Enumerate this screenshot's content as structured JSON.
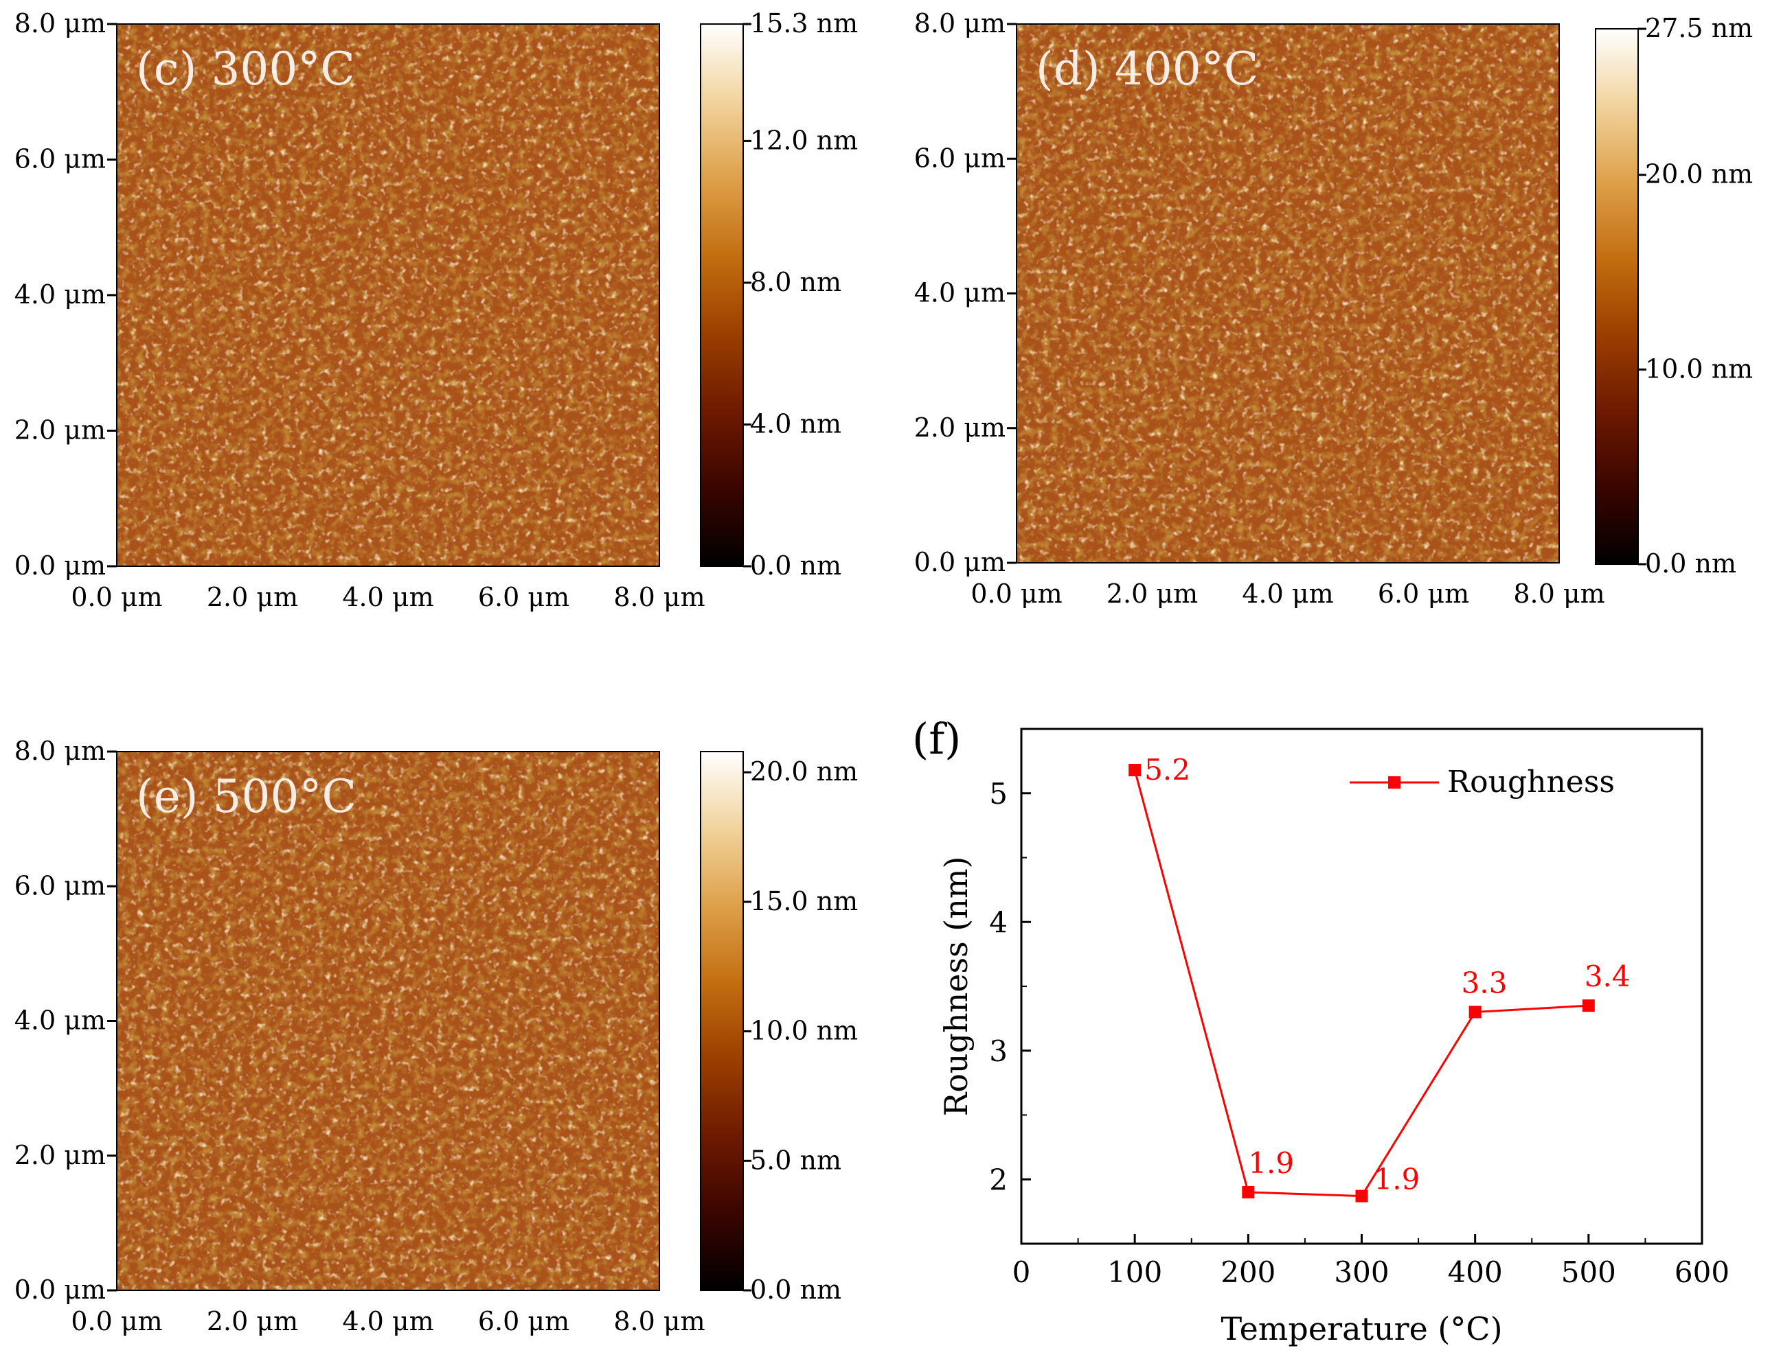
{
  "afm_panels": [
    {
      "id": "c",
      "label": "(c) 300°C",
      "y_ticks": [
        "8.0 μm",
        "6.0 μm",
        "4.0 μm",
        "2.0 μm",
        "0.0 μm"
      ],
      "x_ticks": [
        "0.0 μm",
        "2.0 μm",
        "4.0 μm",
        "6.0 μm",
        "8.0 μm"
      ],
      "colorbar_ticks": [
        {
          "label": "15.3 nm",
          "value": 15.3
        },
        {
          "label": "12.0 nm",
          "value": 12.0
        },
        {
          "label": "8.0 nm",
          "value": 8.0
        },
        {
          "label": "4.0 nm",
          "value": 4.0
        },
        {
          "label": "0.0 nm",
          "value": 0.0
        }
      ],
      "colorbar_max": 15.3
    },
    {
      "id": "d",
      "label": "(d) 400°C",
      "y_ticks": [
        "8.0 μm",
        "6.0 μm",
        "4.0 μm",
        "2.0 μm",
        "0.0 μm"
      ],
      "x_ticks": [
        "0.0 μm",
        "2.0 μm",
        "4.0 μm",
        "6.0 μm",
        "8.0 μm"
      ],
      "colorbar_ticks": [
        {
          "label": "27.5 nm",
          "value": 27.5
        },
        {
          "label": "20.0 nm",
          "value": 20.0
        },
        {
          "label": "10.0 nm",
          "value": 10.0
        },
        {
          "label": "0.0 nm",
          "value": 0.0
        }
      ],
      "colorbar_max": 27.5
    },
    {
      "id": "e",
      "label": "(e) 500°C",
      "y_ticks": [
        "8.0 μm",
        "6.0 μm",
        "4.0 μm",
        "2.0 μm",
        "0.0 μm"
      ],
      "x_ticks": [
        "0.0 μm",
        "2.0 μm",
        "4.0 μm",
        "6.0 μm",
        "8.0 μm"
      ],
      "colorbar_ticks": [
        {
          "label": "20.0 nm",
          "value": 20.0
        },
        {
          "label": "15.0 nm",
          "value": 15.0
        },
        {
          "label": "10.0 nm",
          "value": 10.0
        },
        {
          "label": "5.0 nm",
          "value": 5.0
        },
        {
          "label": "0.0 nm",
          "value": 0.0
        }
      ],
      "colorbar_max": 20.8
    }
  ],
  "colormap": [
    "#000000",
    "#3a0500",
    "#6e1a00",
    "#9b3f00",
    "#c26e10",
    "#dea04a",
    "#f1d39c",
    "#ffffff"
  ],
  "chart_data": {
    "type": "line",
    "panel_label": "(f)",
    "x": [
      100,
      200,
      300,
      400,
      500
    ],
    "series": [
      {
        "name": "Roughness",
        "values": [
          5.18,
          1.9,
          1.87,
          3.3,
          3.35
        ],
        "color": "#ff0000"
      }
    ],
    "data_labels": [
      "5.2",
      "1.9",
      "1.9",
      "3.3",
      "3.4"
    ],
    "xlabel": "Temperature (°C)",
    "ylabel": "Roughness (nm)",
    "xlim": [
      0,
      600
    ],
    "ylim": [
      1.5,
      5.5
    ],
    "x_ticks": [
      "0",
      "100",
      "200",
      "300",
      "400",
      "500",
      "600"
    ],
    "y_ticks": [
      "2",
      "3",
      "4",
      "5"
    ],
    "legend": "top-right"
  }
}
